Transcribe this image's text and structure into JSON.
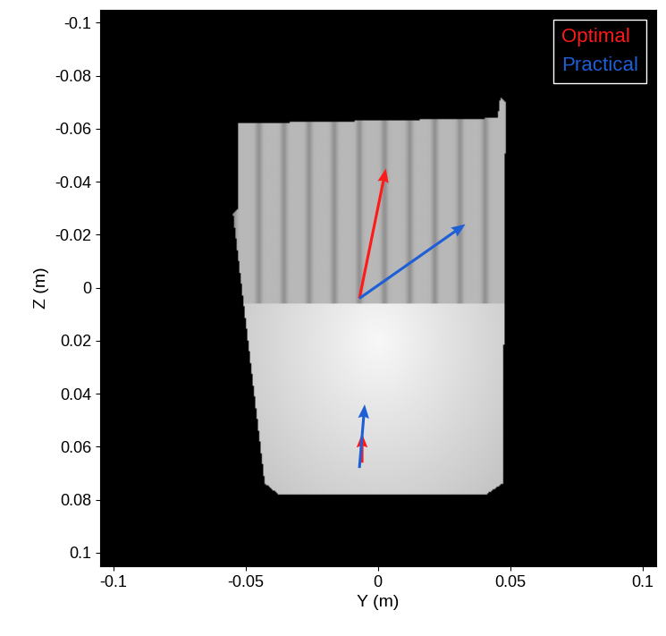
{
  "chart_data": {
    "type": "quiver",
    "xlabel": "Y (m)",
    "ylabel": "Z (m)",
    "xlim": [
      -0.105,
      0.105
    ],
    "ylim": [
      0.105,
      -0.105
    ],
    "xticks": [
      -0.1,
      -0.05,
      0,
      0.05,
      0.1
    ],
    "yticks": [
      -0.1,
      -0.08,
      -0.06,
      -0.04,
      -0.02,
      0,
      0.02,
      0.04,
      0.06,
      0.08,
      0.1
    ],
    "legend": "upper right",
    "series": [
      {
        "name": "Optimal",
        "color": "#ff1a1a",
        "x": [
          -0.007,
          -0.006
        ],
        "y": [
          0.004,
          0.066
        ],
        "u": [
          0.01,
          0.0
        ],
        "v": [
          -0.049,
          -0.011
        ]
      },
      {
        "name": "Practical",
        "color": "#1f5fd6",
        "x": [
          -0.007,
          -0.007
        ],
        "y": [
          0.004,
          0.068
        ],
        "u": [
          0.04,
          0.002
        ],
        "v": [
          -0.028,
          -0.024
        ]
      }
    ]
  }
}
